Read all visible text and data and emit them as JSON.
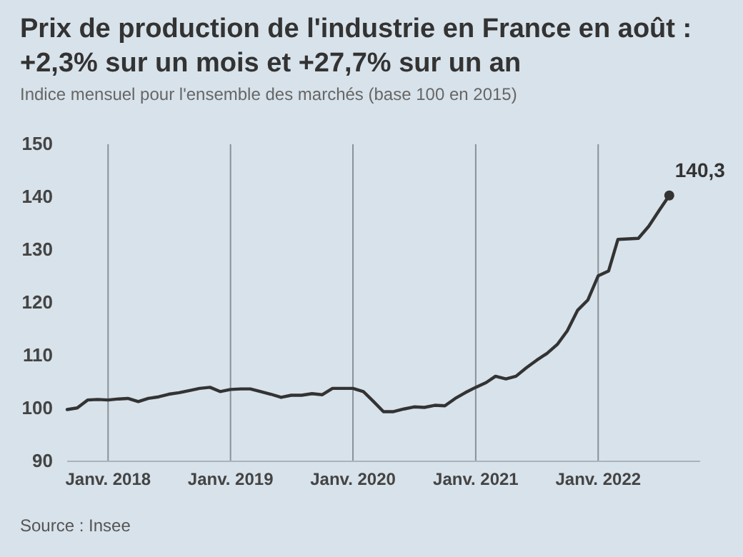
{
  "chart_data": {
    "type": "line",
    "title": "Prix de production de l'industrie en France en août : +2,3% sur un mois et +27,7% sur un an",
    "subtitle": "Indice mensuel pour l'ensemble des marchés (base 100 en 2015)",
    "x": [
      "2017-09",
      "2017-10",
      "2017-11",
      "2017-12",
      "2018-01",
      "2018-02",
      "2018-03",
      "2018-04",
      "2018-05",
      "2018-06",
      "2018-07",
      "2018-08",
      "2018-09",
      "2018-10",
      "2018-11",
      "2018-12",
      "2019-01",
      "2019-02",
      "2019-03",
      "2019-04",
      "2019-05",
      "2019-06",
      "2019-07",
      "2019-08",
      "2019-09",
      "2019-10",
      "2019-11",
      "2019-12",
      "2020-01",
      "2020-02",
      "2020-03",
      "2020-04",
      "2020-05",
      "2020-06",
      "2020-07",
      "2020-08",
      "2020-09",
      "2020-10",
      "2020-11",
      "2020-12",
      "2021-01",
      "2021-02",
      "2021-03",
      "2021-04",
      "2021-05",
      "2021-06",
      "2021-07",
      "2021-08",
      "2021-09",
      "2021-10",
      "2021-11",
      "2021-12",
      "2022-01",
      "2022-02",
      "2022-03",
      "2022-04",
      "2022-05",
      "2022-06",
      "2022-07",
      "2022-08"
    ],
    "series": [
      {
        "color": "#333333",
        "values": [
          99.8,
          100.1,
          101.6,
          101.7,
          101.6,
          101.8,
          101.9,
          101.3,
          101.9,
          102.2,
          102.7,
          103.0,
          103.4,
          103.8,
          104.0,
          103.2,
          103.6,
          103.7,
          103.7,
          103.2,
          102.7,
          102.1,
          102.5,
          102.5,
          102.8,
          102.6,
          103.8,
          103.8,
          103.8,
          103.2,
          101.4,
          99.4,
          99.4,
          99.9,
          100.3,
          100.2,
          100.6,
          100.5,
          101.9,
          103.0,
          104.0,
          104.9,
          106.1,
          105.6,
          106.1,
          107.7,
          109.1,
          110.4,
          112.1,
          114.7,
          118.6,
          120.5,
          125.1,
          126.0,
          132.0,
          132.1,
          132.2,
          134.5,
          137.4,
          140.3
        ]
      }
    ],
    "xticks": [
      {
        "value": "2018-01",
        "label": "Janv. 2018"
      },
      {
        "value": "2019-01",
        "label": "Janv. 2019"
      },
      {
        "value": "2020-01",
        "label": "Janv. 2020"
      },
      {
        "value": "2021-01",
        "label": "Janv. 2021"
      },
      {
        "value": "2022-01",
        "label": "Janv. 2022"
      }
    ],
    "xlim": [
      "2017-09",
      "2022-11"
    ],
    "ylim": [
      90,
      150
    ],
    "yticks": [
      90,
      100,
      110,
      120,
      130,
      140,
      150
    ],
    "grid": "x",
    "marker": "none",
    "line_style": "solid",
    "annotations": [
      {
        "text": "140,3",
        "x": "2022-08",
        "y": 140.3
      },
      "Source : Insee"
    ]
  }
}
